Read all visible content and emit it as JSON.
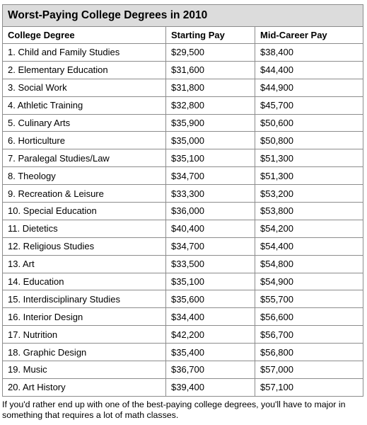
{
  "chart_data": {
    "type": "table",
    "title": "Worst-Paying College Degrees in 2010",
    "columns": [
      "College Degree",
      "Starting Pay",
      "Mid-Career Pay"
    ],
    "rows": [
      [
        "1. Child and Family Studies",
        "$29,500",
        "$38,400"
      ],
      [
        "2. Elementary Education",
        "$31,600",
        "$44,400"
      ],
      [
        "3. Social Work",
        "$31,800",
        "$44,900"
      ],
      [
        "4. Athletic Training",
        "$32,800",
        "$45,700"
      ],
      [
        "5. Culinary Arts",
        "$35,900",
        "$50,600"
      ],
      [
        "6. Horticulture",
        "$35,000",
        "$50,800"
      ],
      [
        "7. Paralegal Studies/Law",
        "$35,100",
        "$51,300"
      ],
      [
        "8. Theology",
        "$34,700",
        "$51,300"
      ],
      [
        "9. Recreation & Leisure",
        "$33,300",
        "$53,200"
      ],
      [
        "10. Special Education",
        "$36,000",
        "$53,800"
      ],
      [
        "11. Dietetics",
        "$40,400",
        "$54,200"
      ],
      [
        "12. Religious Studies",
        "$34,700",
        "$54,400"
      ],
      [
        "13. Art",
        "$33,500",
        "$54,800"
      ],
      [
        "14. Education",
        "$35,100",
        "$54,900"
      ],
      [
        "15. Interdisciplinary Studies",
        "$35,600",
        "$55,700"
      ],
      [
        "16. Interior Design",
        "$34,400",
        "$56,600"
      ],
      [
        "17. Nutrition",
        "$42,200",
        "$56,700"
      ],
      [
        "18. Graphic Design",
        "$35,400",
        "$56,800"
      ],
      [
        "19. Music",
        "$36,700",
        "$57,000"
      ],
      [
        "20. Art History",
        "$39,400",
        "$57,100"
      ]
    ]
  },
  "footnote": "If you'd rather end up with one of the best-paying college degrees, you'll have to major in something that requires a lot of math classes."
}
